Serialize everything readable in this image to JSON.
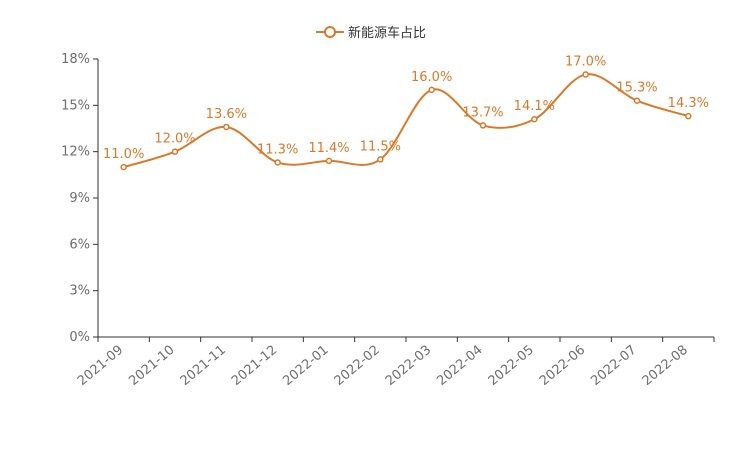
{
  "chart_data": {
    "type": "line",
    "title": "",
    "xlabel": "",
    "ylabel": "",
    "categories": [
      "2021-09",
      "2021-10",
      "2021-11",
      "2021-12",
      "2022-01",
      "2022-02",
      "2022-03",
      "2022-04",
      "2022-05",
      "2022-06",
      "2022-07",
      "2022-08"
    ],
    "series": [
      {
        "name": "新能源车占比",
        "values": [
          11.0,
          12.0,
          13.6,
          11.3,
          11.4,
          11.5,
          16.0,
          13.7,
          14.1,
          17.0,
          15.3,
          14.3
        ],
        "labels": [
          "11.0%",
          "12.0%",
          "13.6%",
          "11.3%",
          "11.4%",
          "11.5%",
          "16.0%",
          "13.7%",
          "14.1%",
          "17.0%",
          "15.3%",
          "14.3%"
        ],
        "color": "#d97a2b",
        "smooth": true
      }
    ],
    "ylim": [
      0,
      18
    ],
    "yticks": [
      0,
      3,
      6,
      9,
      12,
      15,
      18
    ],
    "ytick_labels": [
      "0%",
      "3%",
      "6%",
      "9%",
      "12%",
      "15%",
      "18%"
    ],
    "grid": false,
    "legend": "top-center"
  },
  "colors": {
    "series": "#d97a2b",
    "axis": "#333333",
    "tick_text": "#6e6e6e",
    "legend_text": "#333333"
  }
}
